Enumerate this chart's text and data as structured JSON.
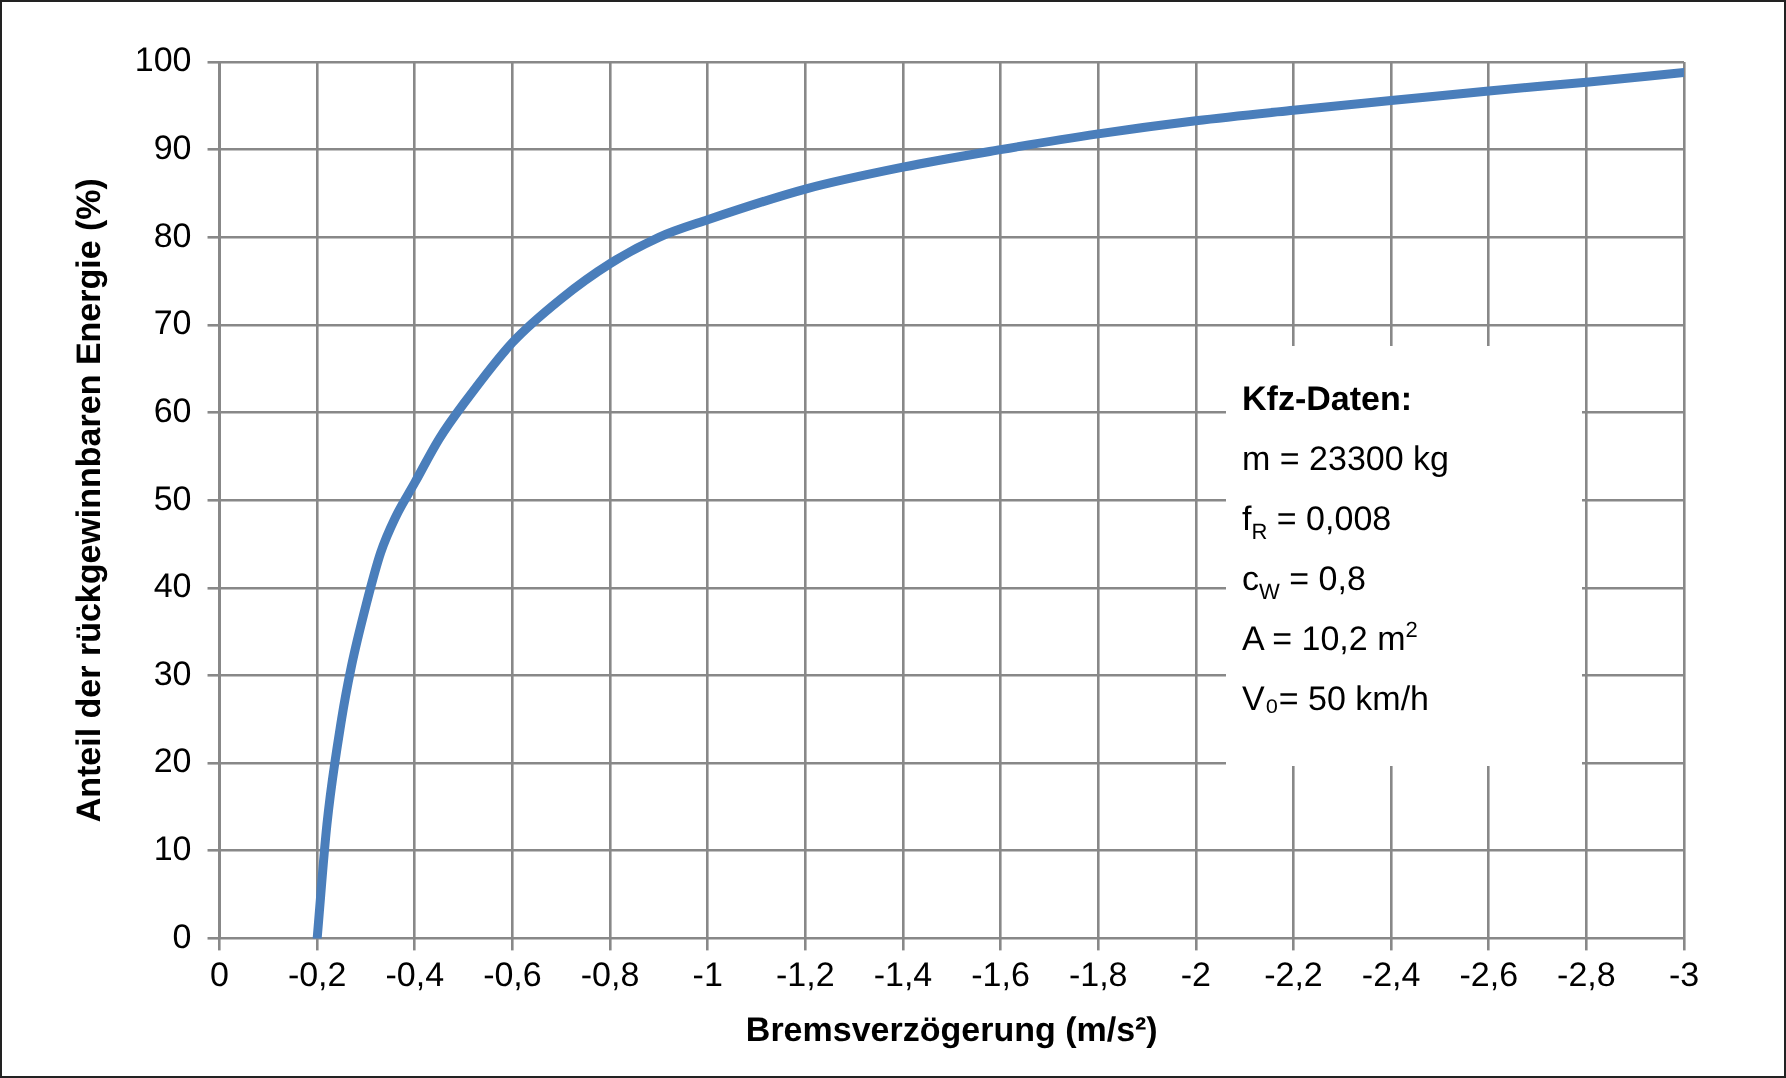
{
  "chart_data": {
    "type": "line",
    "xlabel": "Bremsverzögerung (m/s²)",
    "ylabel": "Anteil der rückgewinnbaren Energie (%)",
    "x": [
      -0.2,
      -0.22,
      -0.25,
      -0.27,
      -0.3,
      -0.33,
      -0.36,
      -0.4,
      -0.45,
      -0.5,
      -0.6,
      -0.7,
      -0.8,
      -0.9,
      -1.0,
      -1.2,
      -1.4,
      -1.6,
      -1.8,
      -2.0,
      -2.2,
      -2.4,
      -2.6,
      -2.8,
      -3.0
    ],
    "series": [
      {
        "color": "#4a7ebb",
        "values": [
          0,
          13,
          25,
          31,
          38,
          44,
          48,
          52,
          57,
          61,
          68,
          73,
          77,
          80,
          82,
          85.5,
          88,
          90,
          91.8,
          93.3,
          94.5,
          95.6,
          96.7,
          97.7,
          98.8
        ]
      }
    ],
    "xlim": [
      0,
      -3
    ],
    "xticks": [
      0,
      {
        "value": -0.2,
        "label": "-0,2"
      },
      {
        "value": -0.4,
        "label": "-0,4"
      },
      {
        "value": -0.6,
        "label": "-0,6"
      },
      {
        "value": -0.8,
        "label": "-0,8"
      },
      -1,
      {
        "value": -1.2,
        "label": "-1,2"
      },
      {
        "value": -1.4,
        "label": "-1,4"
      },
      {
        "value": -1.6,
        "label": "-1,6"
      },
      {
        "value": -1.8,
        "label": "-1,8"
      },
      -2,
      {
        "value": -2.2,
        "label": "-2,2"
      },
      {
        "value": -2.4,
        "label": "-2,4"
      },
      {
        "value": -2.6,
        "label": "-2,6"
      },
      {
        "value": -2.8,
        "label": "-2,8"
      },
      -3
    ],
    "ylim": [
      0,
      100
    ],
    "yticks": [
      0,
      10,
      20,
      30,
      40,
      50,
      60,
      70,
      80,
      90,
      100
    ],
    "grid": true,
    "marker": "none",
    "line_style": "solid",
    "annotations": [
      "Kfz-Daten:",
      "m = 23300 kg",
      "f$_{R}$ = 0,008",
      "c$_{W}$ = 0,8",
      "A = 10,2 m$^{2}$",
      "V₀= 50 km/h"
    ]
  }
}
